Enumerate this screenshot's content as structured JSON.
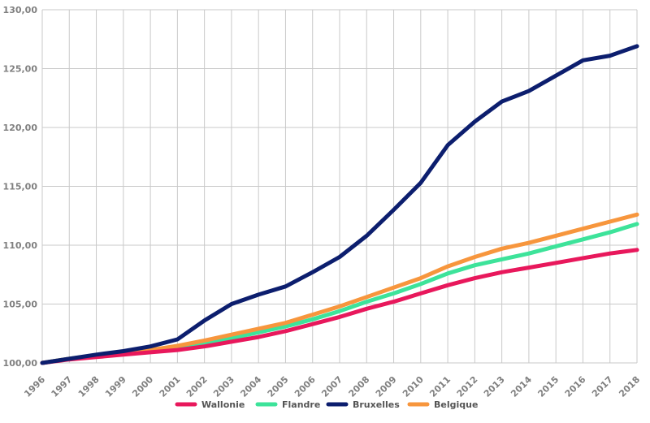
{
  "chart_data": {
    "type": "line",
    "title": "",
    "xlabel": "",
    "ylabel": "",
    "x": [
      "1996",
      "1997",
      "1998",
      "1999",
      "2000",
      "2001",
      "2002",
      "2003",
      "2004",
      "2005",
      "2006",
      "2007",
      "2008",
      "2009",
      "2010",
      "2011",
      "2012",
      "2013",
      "2014",
      "2015",
      "2016",
      "2017",
      "2018"
    ],
    "ylim": [
      100,
      130
    ],
    "yticks": [
      "100,00",
      "105,00",
      "110,00",
      "115,00",
      "120,00",
      "125,00",
      "130,00"
    ],
    "grid": "vertical and horizontal",
    "legend_position": "bottom",
    "series": [
      {
        "name": "Wallonie",
        "color": "#e8185c",
        "values": [
          100.0,
          100.3,
          100.5,
          100.7,
          100.9,
          101.1,
          101.4,
          101.8,
          102.2,
          102.7,
          103.3,
          103.9,
          104.6,
          105.2,
          105.9,
          106.6,
          107.2,
          107.7,
          108.1,
          108.5,
          108.9,
          109.3,
          109.6
        ]
      },
      {
        "name": "Flandre",
        "color": "#3de39a",
        "values": [
          100.0,
          100.35,
          100.65,
          100.9,
          101.1,
          101.35,
          101.7,
          102.1,
          102.6,
          103.1,
          103.7,
          104.4,
          105.2,
          105.9,
          106.7,
          107.6,
          108.3,
          108.8,
          109.3,
          109.9,
          110.5,
          111.1,
          111.8
        ]
      },
      {
        "name": "Bruxelles",
        "color": "#0c1e6e",
        "values": [
          100.0,
          100.35,
          100.7,
          101.0,
          101.4,
          102.0,
          103.6,
          105.0,
          105.8,
          106.5,
          107.7,
          109.0,
          110.8,
          113.0,
          115.3,
          118.5,
          120.5,
          122.2,
          123.1,
          124.4,
          125.7,
          126.1,
          126.9
        ]
      },
      {
        "name": "Belgique",
        "color": "#f7963d",
        "values": [
          100.0,
          100.35,
          100.6,
          100.85,
          101.1,
          101.45,
          101.9,
          102.4,
          102.9,
          103.4,
          104.1,
          104.8,
          105.6,
          106.4,
          107.2,
          108.2,
          109.0,
          109.7,
          110.2,
          110.8,
          111.4,
          112.0,
          112.6
        ]
      }
    ]
  }
}
